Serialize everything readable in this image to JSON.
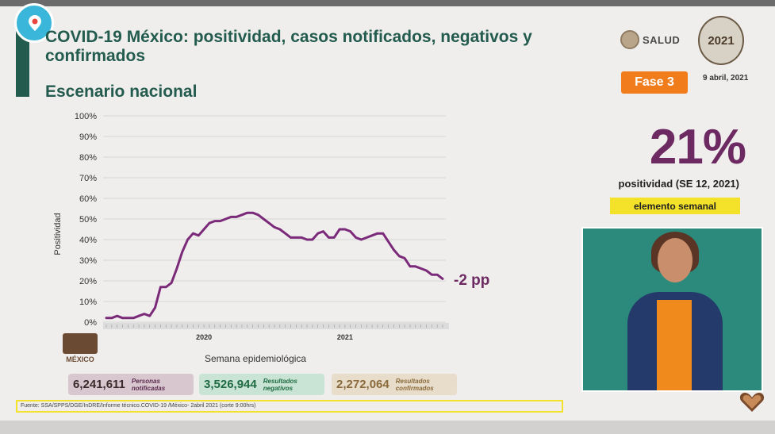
{
  "header": {
    "title": "COVID-19 México: positividad, casos notificados, negativos y confirmados",
    "subtitle": "Escenario nacional",
    "salud_label": "SALUD",
    "year_logo": "2021",
    "phase": "Fase 3",
    "date": "9 abril, 2021"
  },
  "highlight": {
    "value": "21%",
    "label": "positividad (SE 12, 2021)",
    "badge": "elemento semanal"
  },
  "annotation": "-2 pp",
  "gob_logo_text": "MÉXICO",
  "stats": [
    {
      "value": "6,241,611",
      "label": "Personas notificadas"
    },
    {
      "value": "3,526,944",
      "label": "Resultados negativos"
    },
    {
      "value": "2,272,064",
      "label": "Resultados confirmados"
    }
  ],
  "source": "Fuente: SSA/SPPS/DGE/InDRE/Informe técnico.COVID-19 /México- 2abril 2021 (corte 9:00hrs)",
  "colors": {
    "brand_green": "#235b4e",
    "series": "#7b2a7a",
    "phase": "#f07c1b",
    "badge": "#f4e22a"
  },
  "icons": [
    "periscope-live-icon",
    "salud-emblem-icon",
    "hearts-icon"
  ],
  "chart_data": {
    "type": "line",
    "title": "",
    "xlabel": "Semana epidemiológica",
    "ylabel": "Positividad",
    "ylim": [
      0,
      100
    ],
    "yticks": [
      "0%",
      "10%",
      "20%",
      "30%",
      "40%",
      "50%",
      "60%",
      "70%",
      "80%",
      "90%",
      "100%"
    ],
    "year_labels": [
      {
        "label": "2020",
        "week_index": 18
      },
      {
        "label": "2021",
        "week_index": 44
      }
    ],
    "grid": true,
    "series": [
      {
        "values": [
          2,
          2,
          3,
          2,
          2,
          2,
          3,
          4,
          3,
          7,
          17,
          17,
          19,
          26,
          34,
          40,
          43,
          42,
          45,
          48,
          49,
          49,
          50,
          51,
          51,
          52,
          53,
          53,
          52,
          50,
          48,
          46,
          45,
          43,
          41,
          41,
          41,
          40,
          40,
          43,
          44,
          41,
          41,
          45,
          45,
          44,
          41,
          40,
          41,
          42,
          43,
          43,
          39,
          35,
          32,
          31,
          27,
          27,
          26,
          25,
          23,
          23,
          21
        ]
      }
    ]
  }
}
